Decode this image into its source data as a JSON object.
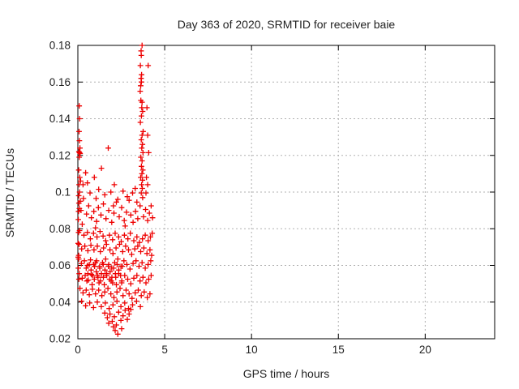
{
  "colors": {
    "background": "#ffffff",
    "marker": "#ee0000",
    "grid": "#b0b0b0",
    "axis": "#000000",
    "text": "#222222"
  },
  "chart_data": {
    "type": "scatter",
    "title": "Day 363 of 2020, SRMTID for receiver baie",
    "xlabel": "GPS time / hours",
    "ylabel": "SRMTID / TECUs",
    "xlim": [
      0,
      24
    ],
    "ylim": [
      0.02,
      0.18
    ],
    "xticks": [
      0,
      5,
      10,
      15,
      20
    ],
    "xtick_labels": [
      "0",
      "5",
      "10",
      "15",
      "20"
    ],
    "yticks": [
      0.02,
      0.04,
      0.06,
      0.08,
      0.1,
      0.12,
      0.14,
      0.16,
      0.18
    ],
    "ytick_labels": [
      "0.02",
      "0.04",
      "0.06",
      "0.08",
      "0.1",
      "0.12",
      "0.14",
      "0.16",
      "0.18"
    ],
    "grid": true,
    "legend": "none",
    "marker": "plus",
    "series": [
      {
        "name": "SRMTID",
        "points": [
          [
            0.08,
            0.147
          ],
          [
            0.1,
            0.14
          ],
          [
            0.07,
            0.133
          ],
          [
            0.09,
            0.128
          ],
          [
            0.12,
            0.124
          ],
          [
            0.06,
            0.122
          ],
          [
            0.1,
            0.1215
          ],
          [
            0.13,
            0.121
          ],
          [
            0.08,
            0.119
          ],
          [
            0.05,
            0.112
          ],
          [
            0.11,
            0.108
          ],
          [
            0.16,
            0.106
          ],
          [
            0.07,
            0.104
          ],
          [
            0.3,
            0.104
          ],
          [
            0.1,
            0.1
          ],
          [
            0.05,
            0.098
          ],
          [
            0.14,
            0.095
          ],
          [
            0.09,
            0.091
          ],
          [
            3.7,
            0.18
          ],
          [
            3.64,
            0.177
          ],
          [
            3.65,
            0.1745
          ],
          [
            3.6,
            0.169
          ],
          [
            3.67,
            0.164
          ],
          [
            3.64,
            0.162
          ],
          [
            3.66,
            0.16
          ],
          [
            3.62,
            0.158
          ],
          [
            3.59,
            0.155
          ],
          [
            3.63,
            0.15
          ],
          [
            3.7,
            0.149
          ],
          [
            3.68,
            0.146
          ],
          [
            3.73,
            0.144
          ],
          [
            3.66,
            0.1415
          ],
          [
            3.6,
            0.138
          ],
          [
            3.76,
            0.133
          ],
          [
            3.7,
            0.131
          ],
          [
            3.65,
            0.1285
          ],
          [
            3.72,
            0.126
          ],
          [
            3.68,
            0.124
          ],
          [
            3.75,
            0.1215
          ],
          [
            3.63,
            0.119
          ],
          [
            3.7,
            0.117
          ],
          [
            3.66,
            0.114
          ],
          [
            3.74,
            0.112
          ],
          [
            3.69,
            0.11
          ],
          [
            3.62,
            0.108
          ],
          [
            3.72,
            0.1065
          ],
          [
            3.67,
            0.104
          ],
          [
            3.71,
            0.102
          ],
          [
            3.65,
            0.0995
          ],
          [
            3.73,
            0.097
          ],
          [
            4.05,
            0.169
          ],
          [
            3.98,
            0.146
          ],
          [
            4.02,
            0.131
          ],
          [
            4.08,
            0.1215
          ],
          [
            3.95,
            0.108
          ],
          [
            4.02,
            0.104
          ],
          [
            3.92,
            0.0995
          ],
          [
            1.75,
            0.124
          ],
          [
            1.36,
            0.113
          ],
          [
            2.1,
            0.104
          ],
          [
            1.2,
            0.1015
          ],
          [
            1.9,
            0.1
          ],
          [
            2.6,
            0.1005
          ],
          [
            3.3,
            0.102
          ],
          [
            0.55,
            0.105
          ],
          [
            0.95,
            0.108
          ],
          [
            1.55,
            0.0985
          ],
          [
            2.85,
            0.0975
          ],
          [
            3.15,
            0.0995
          ],
          [
            0.7,
            0.0995
          ],
          [
            2.3,
            0.096
          ],
          [
            0.45,
            0.1105
          ],
          [
            1.05,
            0.0965
          ],
          [
            3.4,
            0.0945
          ],
          [
            2.05,
            0.0925
          ],
          [
            0.06,
            0.094
          ],
          [
            0.18,
            0.09
          ],
          [
            0.32,
            0.0965
          ],
          [
            0.5,
            0.088
          ],
          [
            0.62,
            0.0925
          ],
          [
            0.78,
            0.086
          ],
          [
            0.92,
            0.0895
          ],
          [
            1.08,
            0.084
          ],
          [
            1.18,
            0.0915
          ],
          [
            1.33,
            0.0875
          ],
          [
            1.47,
            0.0935
          ],
          [
            1.62,
            0.0855
          ],
          [
            1.78,
            0.09
          ],
          [
            1.95,
            0.0835
          ],
          [
            2.08,
            0.0885
          ],
          [
            2.22,
            0.0945
          ],
          [
            2.38,
            0.0865
          ],
          [
            2.52,
            0.0915
          ],
          [
            2.67,
            0.0845
          ],
          [
            2.8,
            0.089
          ],
          [
            2.95,
            0.0955
          ],
          [
            3.05,
            0.0875
          ],
          [
            3.18,
            0.0835
          ],
          [
            3.32,
            0.0895
          ],
          [
            3.45,
            0.0855
          ],
          [
            3.58,
            0.0925
          ],
          [
            3.78,
            0.0865
          ],
          [
            3.9,
            0.0905
          ],
          [
            4.02,
            0.0845
          ],
          [
            4.12,
            0.0885
          ],
          [
            4.22,
            0.0925
          ],
          [
            4.3,
            0.086
          ],
          [
            0.25,
            0.0825
          ],
          [
            1.02,
            0.0805
          ],
          [
            2.72,
            0.0815
          ],
          [
            0.1,
            0.079
          ],
          [
            0.35,
            0.0765
          ],
          [
            0.55,
            0.078
          ],
          [
            0.72,
            0.0745
          ],
          [
            0.9,
            0.0775
          ],
          [
            1.1,
            0.0755
          ],
          [
            1.28,
            0.0785
          ],
          [
            1.45,
            0.076
          ],
          [
            1.6,
            0.0735
          ],
          [
            1.82,
            0.0765
          ],
          [
            2.0,
            0.074
          ],
          [
            2.15,
            0.0775
          ],
          [
            2.35,
            0.0755
          ],
          [
            2.5,
            0.073
          ],
          [
            2.68,
            0.0765
          ],
          [
            2.88,
            0.0745
          ],
          [
            3.02,
            0.0775
          ],
          [
            3.22,
            0.0735
          ],
          [
            3.4,
            0.0755
          ],
          [
            3.55,
            0.0725
          ],
          [
            3.72,
            0.0745
          ],
          [
            3.88,
            0.0765
          ],
          [
            4.05,
            0.0735
          ],
          [
            4.18,
            0.0755
          ],
          [
            4.28,
            0.0775
          ],
          [
            0.07,
            0.0715
          ],
          [
            0.22,
            0.069
          ],
          [
            0.4,
            0.0705
          ],
          [
            0.58,
            0.068
          ],
          [
            0.75,
            0.071
          ],
          [
            0.93,
            0.0685
          ],
          [
            1.12,
            0.0705
          ],
          [
            1.3,
            0.0675
          ],
          [
            1.48,
            0.0695
          ],
          [
            1.65,
            0.0715
          ],
          [
            1.85,
            0.0685
          ],
          [
            2.02,
            0.0665
          ],
          [
            2.2,
            0.0695
          ],
          [
            2.4,
            0.0715
          ],
          [
            2.58,
            0.0675
          ],
          [
            2.75,
            0.0705
          ],
          [
            2.92,
            0.0685
          ],
          [
            3.1,
            0.066
          ],
          [
            3.28,
            0.069
          ],
          [
            3.45,
            0.0705
          ],
          [
            3.62,
            0.0675
          ],
          [
            3.8,
            0.0695
          ],
          [
            3.98,
            0.0665
          ],
          [
            4.15,
            0.0685
          ],
          [
            4.25,
            0.0655
          ],
          [
            0.05,
            0.0635
          ],
          [
            0.2,
            0.061
          ],
          [
            0.38,
            0.0625
          ],
          [
            0.55,
            0.06
          ],
          [
            0.73,
            0.063
          ],
          [
            0.9,
            0.0605
          ],
          [
            1.08,
            0.0625
          ],
          [
            1.25,
            0.0595
          ],
          [
            1.42,
            0.0615
          ],
          [
            1.6,
            0.0635
          ],
          [
            1.78,
            0.0605
          ],
          [
            1.95,
            0.0585
          ],
          [
            2.12,
            0.0615
          ],
          [
            2.3,
            0.0635
          ],
          [
            2.48,
            0.0595
          ],
          [
            2.65,
            0.0625
          ],
          [
            2.82,
            0.0605
          ],
          [
            3.0,
            0.058
          ],
          [
            3.18,
            0.061
          ],
          [
            3.35,
            0.0625
          ],
          [
            3.52,
            0.0595
          ],
          [
            3.7,
            0.0615
          ],
          [
            3.88,
            0.0585
          ],
          [
            4.05,
            0.0605
          ],
          [
            4.2,
            0.0625
          ],
          [
            0.08,
            0.0555
          ],
          [
            0.25,
            0.053
          ],
          [
            0.42,
            0.0545
          ],
          [
            0.6,
            0.052
          ],
          [
            0.78,
            0.055
          ],
          [
            0.95,
            0.0525
          ],
          [
            1.13,
            0.0545
          ],
          [
            1.3,
            0.0515
          ],
          [
            1.47,
            0.0535
          ],
          [
            1.65,
            0.0555
          ],
          [
            1.83,
            0.0525
          ],
          [
            2.0,
            0.0505
          ],
          [
            2.18,
            0.0535
          ],
          [
            2.35,
            0.0555
          ],
          [
            2.53,
            0.0515
          ],
          [
            2.7,
            0.0545
          ],
          [
            2.87,
            0.0525
          ],
          [
            3.05,
            0.05
          ],
          [
            3.22,
            0.053
          ],
          [
            3.4,
            0.0545
          ],
          [
            3.58,
            0.0515
          ],
          [
            3.75,
            0.0535
          ],
          [
            3.92,
            0.0505
          ],
          [
            4.08,
            0.0525
          ],
          [
            4.22,
            0.0545
          ],
          [
            0.12,
            0.0475
          ],
          [
            0.3,
            0.045
          ],
          [
            0.48,
            0.0465
          ],
          [
            0.66,
            0.044
          ],
          [
            0.84,
            0.047
          ],
          [
            1.02,
            0.0445
          ],
          [
            1.2,
            0.0465
          ],
          [
            1.38,
            0.0435
          ],
          [
            1.55,
            0.0455
          ],
          [
            1.73,
            0.0475
          ],
          [
            1.9,
            0.0445
          ],
          [
            2.08,
            0.0425
          ],
          [
            2.25,
            0.0455
          ],
          [
            2.43,
            0.0475
          ],
          [
            2.6,
            0.0435
          ],
          [
            2.78,
            0.0465
          ],
          [
            2.95,
            0.0445
          ],
          [
            3.12,
            0.042
          ],
          [
            3.3,
            0.045
          ],
          [
            3.48,
            0.0465
          ],
          [
            3.65,
            0.0435
          ],
          [
            3.82,
            0.0455
          ],
          [
            4.0,
            0.0425
          ],
          [
            4.15,
            0.0445
          ],
          [
            0.22,
            0.0405
          ],
          [
            0.45,
            0.038
          ],
          [
            0.68,
            0.0395
          ],
          [
            0.9,
            0.037
          ],
          [
            1.12,
            0.04
          ],
          [
            1.35,
            0.0375
          ],
          [
            1.58,
            0.0395
          ],
          [
            1.8,
            0.0365
          ],
          [
            2.02,
            0.0385
          ],
          [
            2.25,
            0.0405
          ],
          [
            2.48,
            0.0375
          ],
          [
            2.7,
            0.0395
          ],
          [
            2.92,
            0.0365
          ],
          [
            3.15,
            0.0385
          ],
          [
            3.38,
            0.0405
          ],
          [
            3.6,
            0.0375
          ],
          [
            0.48,
            0.0585
          ],
          [
            0.58,
            0.0555
          ],
          [
            0.66,
            0.0605
          ],
          [
            0.76,
            0.0575
          ],
          [
            0.86,
            0.0545
          ],
          [
            0.96,
            0.0595
          ],
          [
            1.06,
            0.0565
          ],
          [
            1.16,
            0.0535
          ],
          [
            1.26,
            0.0585
          ],
          [
            1.36,
            0.0555
          ],
          [
            1.46,
            0.0605
          ],
          [
            1.56,
            0.0575
          ],
          [
            1.66,
            0.0545
          ],
          [
            1.76,
            0.0595
          ],
          [
            1.86,
            0.0565
          ],
          [
            1.96,
            0.0535
          ],
          [
            2.06,
            0.0585
          ],
          [
            2.16,
            0.0555
          ],
          [
            2.26,
            0.0605
          ],
          [
            2.36,
            0.0575
          ],
          [
            2.46,
            0.0545
          ],
          [
            2.56,
            0.0595
          ],
          [
            0.52,
            0.0515
          ],
          [
            0.82,
            0.0495
          ],
          [
            1.22,
            0.0505
          ],
          [
            1.52,
            0.0495
          ],
          [
            1.92,
            0.0515
          ],
          [
            2.22,
            0.0495
          ],
          [
            2.52,
            0.0505
          ],
          [
            1.02,
            0.0615
          ],
          [
            1.55,
            0.034
          ],
          [
            1.7,
            0.0315
          ],
          [
            1.85,
            0.0335
          ],
          [
            1.98,
            0.0295
          ],
          [
            2.1,
            0.032
          ],
          [
            2.22,
            0.0275
          ],
          [
            2.35,
            0.0345
          ],
          [
            2.48,
            0.03
          ],
          [
            2.6,
            0.0325
          ],
          [
            2.72,
            0.0355
          ],
          [
            2.85,
            0.0305
          ],
          [
            2.95,
            0.0335
          ],
          [
            3.05,
            0.036
          ],
          [
            2.15,
            0.0245
          ],
          [
            2.3,
            0.0225
          ],
          [
            2.05,
            0.0265
          ],
          [
            2.52,
            0.0255
          ],
          [
            1.78,
            0.0285
          ],
          [
            0.03,
            0.085
          ],
          [
            0.04,
            0.078
          ],
          [
            0.02,
            0.072
          ],
          [
            0.05,
            0.0655
          ],
          [
            0.03,
            0.0585
          ],
          [
            0.06,
            0.0525
          ],
          [
            0.02,
            0.0645
          ],
          [
            0.04,
            0.0895
          ]
        ]
      }
    ]
  }
}
